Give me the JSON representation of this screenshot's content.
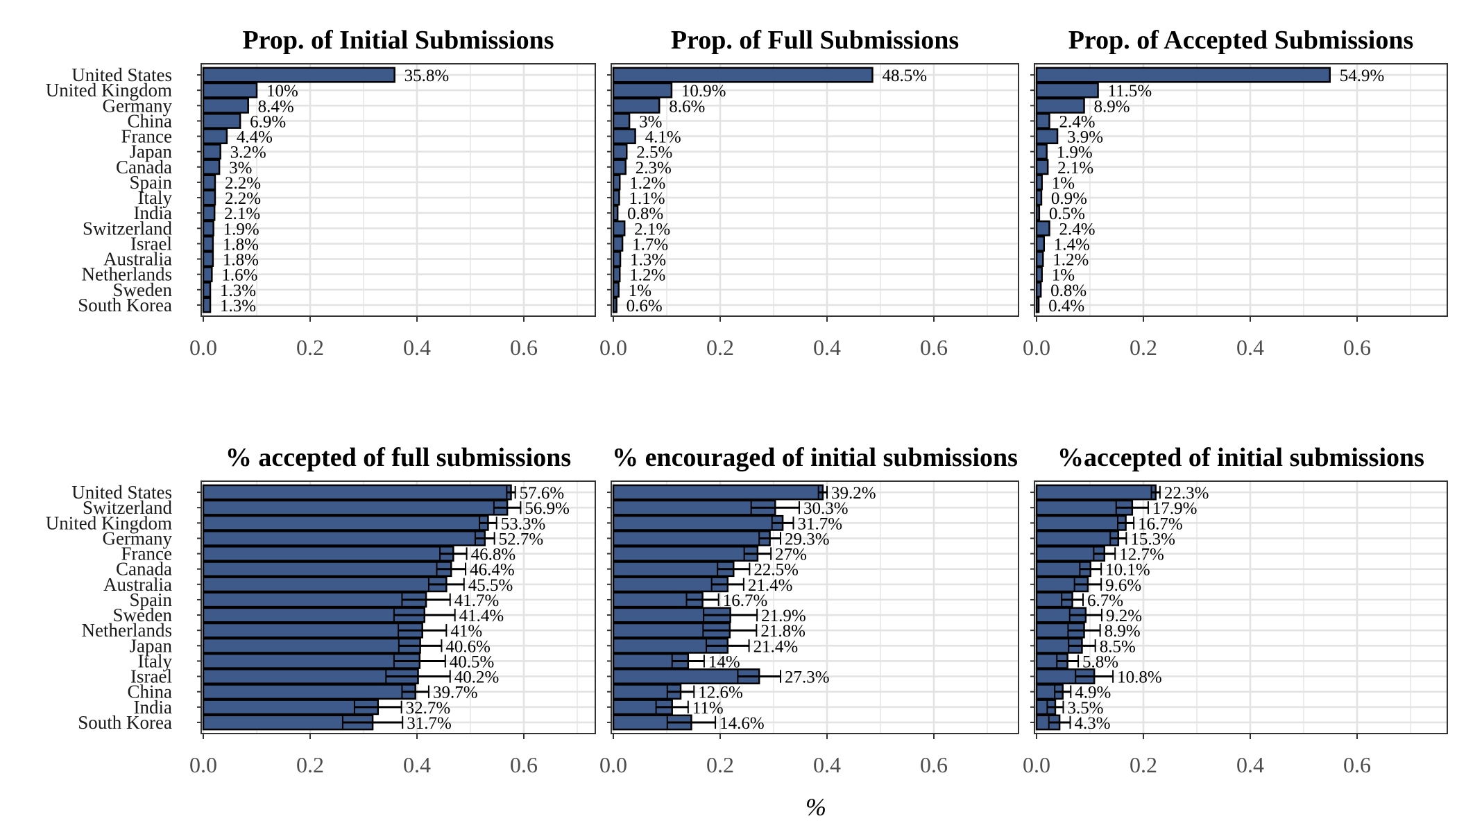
{
  "chart_data": [
    {
      "type": "bar",
      "orientation": "horizontal",
      "title": "Prop. of Initial Submissions",
      "categories": [
        "United States",
        "United Kingdom",
        "Germany",
        "China",
        "France",
        "Japan",
        "Canada",
        "Spain",
        "Italy",
        "India",
        "Switzerland",
        "Israel",
        "Australia",
        "Netherlands",
        "Sweden",
        "South Korea"
      ],
      "values": [
        0.358,
        0.1,
        0.084,
        0.069,
        0.044,
        0.032,
        0.03,
        0.022,
        0.022,
        0.021,
        0.019,
        0.018,
        0.018,
        0.016,
        0.013,
        0.013
      ],
      "labels": [
        "35.8%",
        "10%",
        "8.4%",
        "6.9%",
        "4.4%",
        "3.2%",
        "3%",
        "2.2%",
        "2.2%",
        "2.1%",
        "1.9%",
        "1.8%",
        "1.8%",
        "1.6%",
        "1.3%",
        "1.3%"
      ],
      "xlim": [
        0,
        0.72
      ],
      "xticks": [
        "0.0",
        "0.2",
        "0.4",
        "0.6"
      ],
      "grid": true
    },
    {
      "type": "bar",
      "orientation": "horizontal",
      "title": "Prop. of Full Submissions",
      "categories": [
        "United States",
        "United Kingdom",
        "Germany",
        "China",
        "France",
        "Japan",
        "Canada",
        "Spain",
        "Italy",
        "India",
        "Switzerland",
        "Israel",
        "Australia",
        "Netherlands",
        "Sweden",
        "South Korea"
      ],
      "values": [
        0.485,
        0.109,
        0.086,
        0.03,
        0.041,
        0.025,
        0.023,
        0.012,
        0.011,
        0.008,
        0.021,
        0.017,
        0.013,
        0.012,
        0.01,
        0.006
      ],
      "labels": [
        "48.5%",
        "10.9%",
        "8.6%",
        "3%",
        "4.1%",
        "2.5%",
        "2.3%",
        "1.2%",
        "1.1%",
        "0.8%",
        "2.1%",
        "1.7%",
        "1.3%",
        "1.2%",
        "1%",
        "0.6%"
      ],
      "xlim": [
        0,
        0.72
      ],
      "xticks": [
        "0.0",
        "0.2",
        "0.4",
        "0.6"
      ],
      "grid": true
    },
    {
      "type": "bar",
      "orientation": "horizontal",
      "title": "Prop. of Accepted Submissions",
      "categories": [
        "United States",
        "United Kingdom",
        "Germany",
        "China",
        "France",
        "Japan",
        "Canada",
        "Spain",
        "Italy",
        "India",
        "Switzerland",
        "Israel",
        "Australia",
        "Netherlands",
        "Sweden",
        "South Korea"
      ],
      "values": [
        0.549,
        0.115,
        0.089,
        0.024,
        0.039,
        0.019,
        0.021,
        0.01,
        0.009,
        0.005,
        0.024,
        0.014,
        0.012,
        0.01,
        0.008,
        0.004
      ],
      "labels": [
        "54.9%",
        "11.5%",
        "8.9%",
        "2.4%",
        "3.9%",
        "1.9%",
        "2.1%",
        "1%",
        "0.9%",
        "0.5%",
        "2.4%",
        "1.4%",
        "1.2%",
        "1%",
        "0.8%",
        "0.4%"
      ],
      "xlim": [
        0,
        0.72
      ],
      "xticks": [
        "0.0",
        "0.2",
        "0.4",
        "0.6"
      ],
      "grid": true
    },
    {
      "type": "bar",
      "orientation": "horizontal",
      "title": "% accepted of full submissions",
      "categories": [
        "United States",
        "Switzerland",
        "United Kingdom",
        "Germany",
        "France",
        "Canada",
        "Australia",
        "Spain",
        "Sweden",
        "Netherlands",
        "Japan",
        "Italy",
        "Israel",
        "China",
        "India",
        "South Korea"
      ],
      "values": [
        0.576,
        0.569,
        0.533,
        0.527,
        0.468,
        0.464,
        0.455,
        0.417,
        0.414,
        0.41,
        0.406,
        0.405,
        0.402,
        0.397,
        0.327,
        0.317
      ],
      "labels": [
        "57.6%",
        "56.9%",
        "53.3%",
        "52.7%",
        "46.8%",
        "46.4%",
        "45.5%",
        "41.7%",
        "41.4%",
        "41%",
        "40.6%",
        "40.5%",
        "40.2%",
        "39.7%",
        "32.7%",
        "31.7%"
      ],
      "error_margin": [
        0.008,
        0.025,
        0.016,
        0.018,
        0.025,
        0.027,
        0.033,
        0.045,
        0.057,
        0.045,
        0.04,
        0.048,
        0.06,
        0.025,
        0.044,
        0.056
      ],
      "xlim": [
        0,
        0.72
      ],
      "xticks": [
        "0.0",
        "0.2",
        "0.4",
        "0.6"
      ],
      "grid": true
    },
    {
      "type": "bar",
      "orientation": "horizontal",
      "title": "% encouraged of initial submissions",
      "categories": [
        "United States",
        "Switzerland",
        "United Kingdom",
        "Germany",
        "France",
        "Canada",
        "Australia",
        "Spain",
        "Sweden",
        "Netherlands",
        "Japan",
        "Italy",
        "Israel",
        "China",
        "India",
        "South Korea"
      ],
      "values": [
        0.392,
        0.303,
        0.317,
        0.293,
        0.27,
        0.225,
        0.214,
        0.167,
        0.219,
        0.218,
        0.214,
        0.14,
        0.273,
        0.126,
        0.11,
        0.146
      ],
      "labels": [
        "39.2%",
        "30.3%",
        "31.7%",
        "29.3%",
        "27%",
        "22.5%",
        "21.4%",
        "16.7%",
        "21.9%",
        "21.8%",
        "21.4%",
        "14%",
        "27.3%",
        "12.6%",
        "11%",
        "14.6%"
      ],
      "error_margin": [
        0.008,
        0.045,
        0.02,
        0.02,
        0.025,
        0.03,
        0.03,
        0.03,
        0.05,
        0.05,
        0.04,
        0.03,
        0.04,
        0.025,
        0.03,
        0.045
      ],
      "xlim": [
        0,
        0.72
      ],
      "xticks": [
        "0.0",
        "0.2",
        "0.4",
        "0.6"
      ],
      "grid": true
    },
    {
      "type": "bar",
      "orientation": "horizontal",
      "title": "%accepted of initial submissions",
      "categories": [
        "United States",
        "Switzerland",
        "United Kingdom",
        "Germany",
        "France",
        "Canada",
        "Australia",
        "Spain",
        "Sweden",
        "Netherlands",
        "Japan",
        "Italy",
        "Israel",
        "China",
        "India",
        "South Korea"
      ],
      "values": [
        0.223,
        0.179,
        0.167,
        0.153,
        0.127,
        0.101,
        0.096,
        0.067,
        0.092,
        0.089,
        0.085,
        0.058,
        0.108,
        0.049,
        0.035,
        0.043
      ],
      "labels": [
        "22.3%",
        "17.9%",
        "16.7%",
        "15.3%",
        "12.7%",
        "10.1%",
        "9.6%",
        "6.7%",
        "9.2%",
        "8.9%",
        "8.5%",
        "5.8%",
        "10.8%",
        "4.9%",
        "3.5%",
        "4.3%"
      ],
      "error_margin": [
        0.008,
        0.03,
        0.015,
        0.015,
        0.02,
        0.02,
        0.025,
        0.02,
        0.03,
        0.03,
        0.025,
        0.02,
        0.035,
        0.015,
        0.015,
        0.02
      ],
      "xlim": [
        0,
        0.72
      ],
      "xticks": [
        "0.0",
        "0.2",
        "0.4",
        "0.6"
      ],
      "grid": true
    }
  ],
  "xlabel": "%",
  "colors": {
    "bar_fill": "#3e5a8a",
    "bar_stroke": "#000000",
    "grid": "#e3e3e3",
    "panel_border": "#333333"
  }
}
